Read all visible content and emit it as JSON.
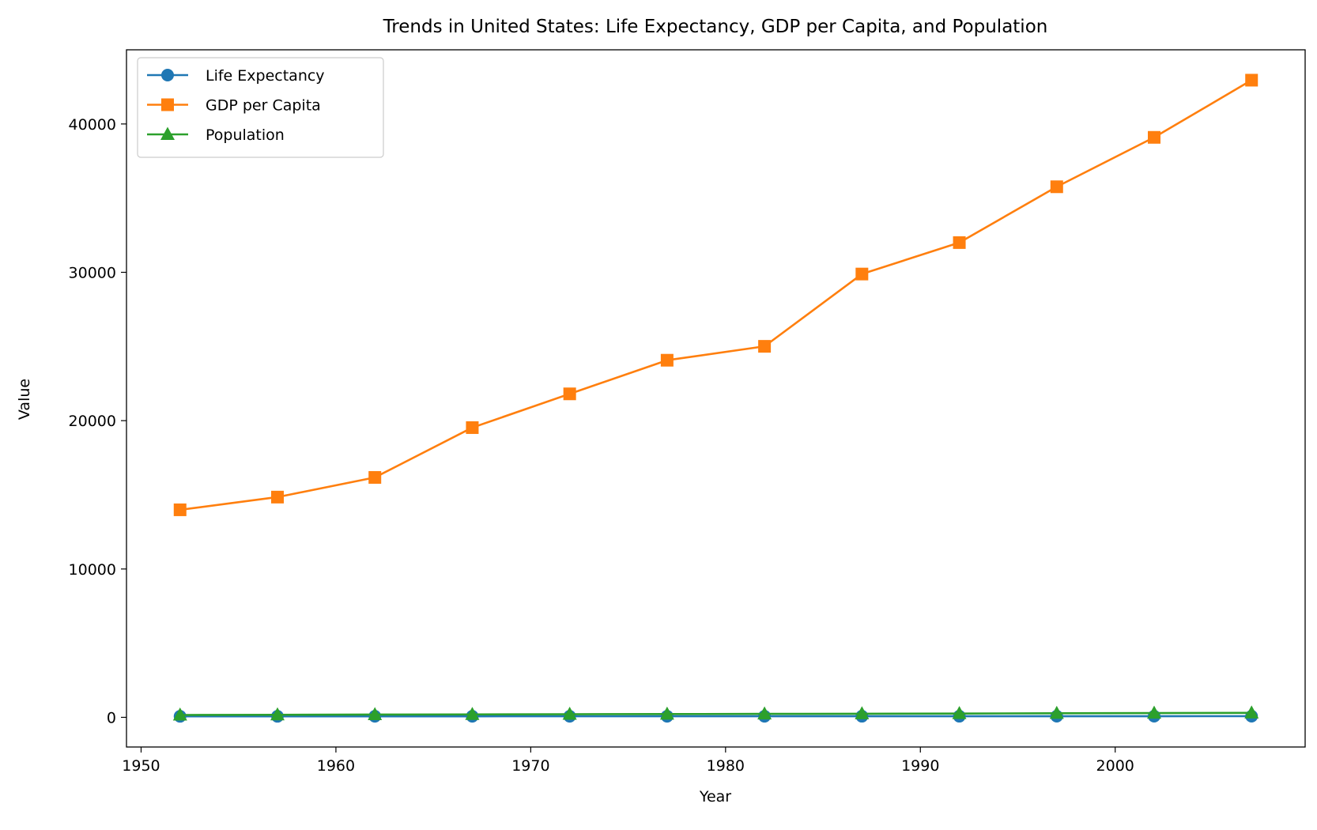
{
  "chart_data": {
    "type": "line",
    "title": "Trends in United States: Life Expectancy, GDP per Capita, and Population",
    "xlabel": "Year",
    "ylabel": "Value",
    "xlim": [
      1949.25,
      2009.75
    ],
    "ylim": [
      -2000,
      45000
    ],
    "xticks": [
      1950,
      1960,
      1970,
      1980,
      1990,
      2000
    ],
    "yticks": [
      0,
      10000,
      20000,
      30000,
      40000
    ],
    "grid": false,
    "legend_position": "upper-left",
    "x": [
      1952,
      1957,
      1962,
      1967,
      1972,
      1977,
      1982,
      1987,
      1992,
      1997,
      2002,
      2007
    ],
    "series": [
      {
        "name": "Life Expectancy",
        "color": "#1f77b4",
        "marker": "circle",
        "values": [
          68.44,
          69.49,
          70.21,
          70.76,
          71.34,
          73.38,
          74.65,
          75.02,
          76.09,
          76.81,
          77.31,
          78.24
        ]
      },
      {
        "name": "GDP per Capita",
        "color": "#ff7f0e",
        "marker": "square",
        "values": [
          13990,
          14847,
          16173,
          19531,
          21806,
          24073,
          25010,
          29884,
          32004,
          35767,
          39097,
          42952
        ]
      },
      {
        "name": "Population",
        "color": "#2ca02c",
        "marker": "triangle",
        "values": [
          157.55,
          171.98,
          186.54,
          198.71,
          209.9,
          220.24,
          232.19,
          242.8,
          256.89,
          272.91,
          287.68,
          301.14
        ]
      }
    ]
  }
}
